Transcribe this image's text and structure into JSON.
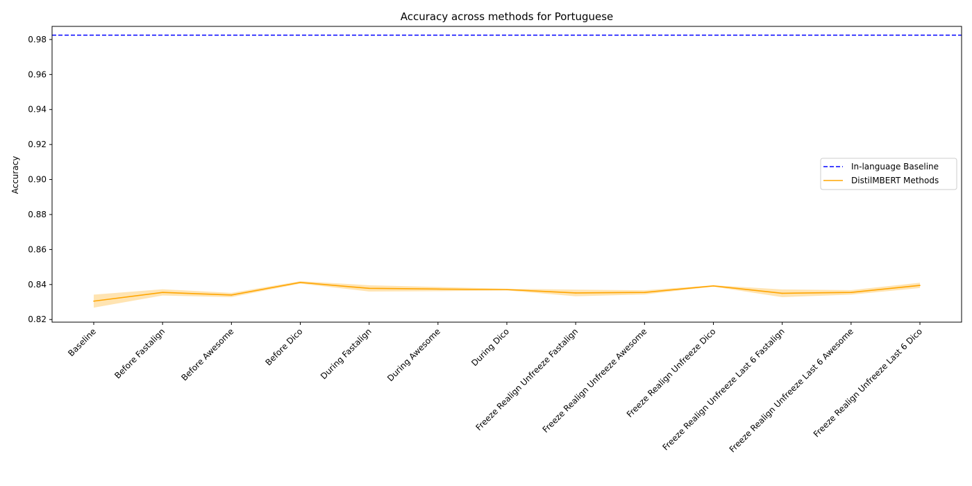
{
  "chart_data": {
    "type": "line",
    "title": "Accuracy across methods for Portuguese",
    "xlabel": "",
    "ylabel": "Accuracy",
    "categories": [
      "Baseline",
      "Before Fastalign",
      "Before Awesome",
      "Before Dico",
      "During Fastalign",
      "During Awesome",
      "During Dico",
      "Freeze Realign Unfreeze Fastalign",
      "Freeze Realign Unfreeze Awesome",
      "Freeze Realign Unfreeze Dico",
      "Freeze Realign Unfreeze Last 6 Fastalign",
      "Freeze Realign Unfreeze Last 6 Awesome",
      "Freeze Realign Unfreeze Last 6 Dico"
    ],
    "ylim": [
      0.8185,
      0.9875
    ],
    "yticks": [
      "0.82",
      "0.84",
      "0.86",
      "0.88",
      "0.90",
      "0.92",
      "0.94",
      "0.96",
      "0.98"
    ],
    "grid": false,
    "legend_position": "center-right",
    "baseline": {
      "name": "In-language Baseline",
      "value": 0.9825,
      "color": "#0000ff",
      "style": "dashed"
    },
    "series": [
      {
        "name": "DistilMBERT Methods",
        "color": "#ffa500",
        "values": [
          0.8305,
          0.8355,
          0.834,
          0.8412,
          0.8378,
          0.8374,
          0.8371,
          0.8352,
          0.8355,
          0.8392,
          0.835,
          0.8355,
          0.8395
        ],
        "lower": [
          0.8268,
          0.8337,
          0.8328,
          0.8405,
          0.836,
          0.8362,
          0.8366,
          0.8333,
          0.8343,
          0.8388,
          0.8328,
          0.8342,
          0.838
        ],
        "upper": [
          0.8342,
          0.8373,
          0.8352,
          0.8419,
          0.8396,
          0.8386,
          0.8376,
          0.8371,
          0.8367,
          0.8396,
          0.8372,
          0.8368,
          0.841
        ]
      }
    ]
  }
}
